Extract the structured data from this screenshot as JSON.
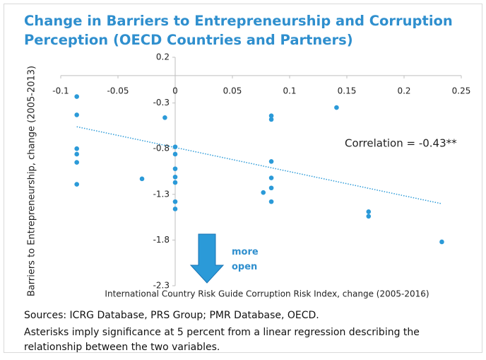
{
  "chart_data": {
    "type": "scatter",
    "title": "Change in Barriers to Entrepreneurship and Corruption Perception (OECD Countries and Partners)",
    "x_label": "International Country Risk Guide Corruption Risk Index, change (2005-2016)",
    "y_label": "Barriers to Entrepreneurship, change (2005-2013)",
    "annotation": "Correlation = -0.43**",
    "arrow_label": "more open",
    "color": "#2b9ad8",
    "xlim": [
      -0.1,
      0.25
    ],
    "xticks": [
      -0.1,
      -0.05,
      0,
      0.05,
      0.1,
      0.15,
      0.2,
      0.25
    ],
    "ylim": [
      -2.3,
      0.2
    ],
    "yticks": [
      0.2,
      -0.3,
      -0.8,
      -1.3,
      -1.8,
      -2.3
    ],
    "x": [
      -0.086,
      -0.086,
      -0.086,
      -0.086,
      -0.086,
      -0.086,
      -0.029,
      -0.009,
      0,
      0,
      0,
      0,
      0,
      0,
      0,
      0.077,
      0.084,
      0.084,
      0.084,
      0.084,
      0.084,
      0.084,
      0.141,
      0.169,
      0.169,
      0.233
    ],
    "values": [
      -0.23,
      -0.43,
      -0.8,
      -0.86,
      -0.95,
      -1.19,
      -1.13,
      -0.46,
      -0.78,
      -0.86,
      -1.02,
      -1.11,
      -1.17,
      -1.38,
      -1.46,
      -1.28,
      -0.44,
      -0.48,
      -0.94,
      -1.12,
      -1.23,
      -1.38,
      -0.35,
      -1.49,
      -1.54,
      -1.82
    ],
    "trendline": {
      "x": [
        -0.086,
        0.232
      ],
      "values": [
        -0.56,
        -1.4
      ]
    }
  },
  "footer": {
    "sources": "Sources: ICRG Database, PRS Group; PMR Database, OECD.",
    "note": "Asterisks imply significance at 5 percent from a linear regression describing the relationship between the two variables."
  }
}
